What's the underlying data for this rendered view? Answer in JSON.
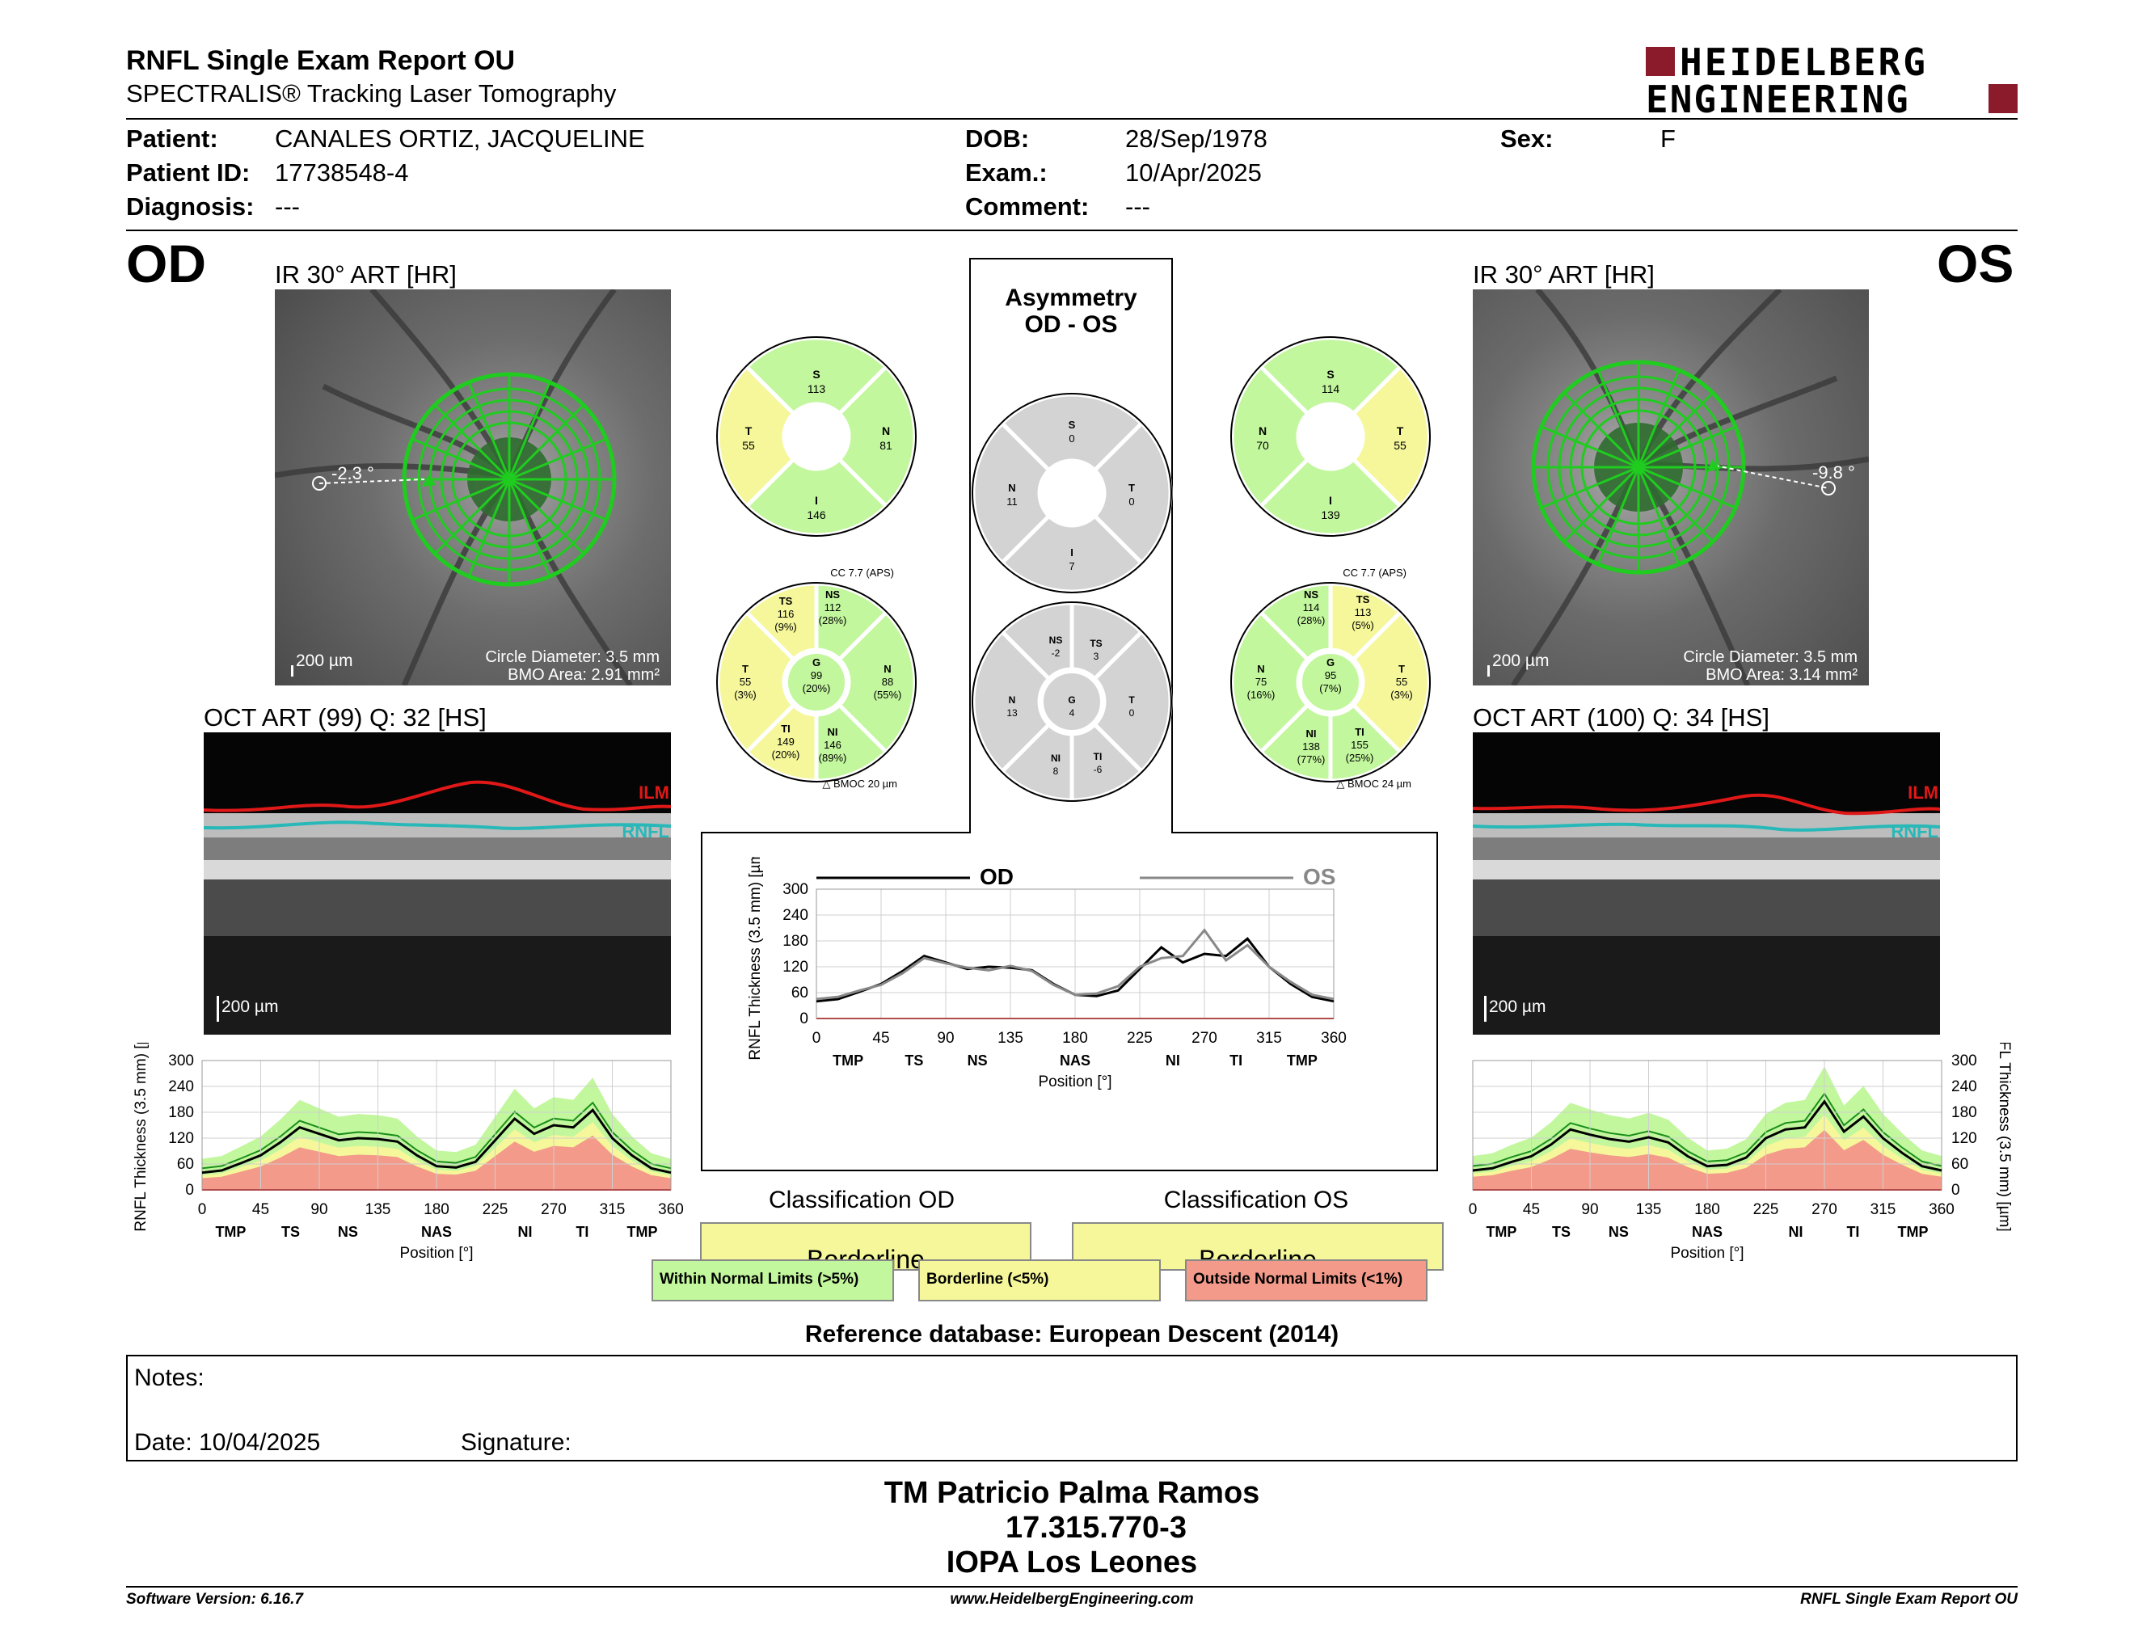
{
  "header": {
    "title": "RNFL Single Exam Report OU",
    "subtitle": "SPECTRALIS® Tracking Laser Tomography",
    "logo_line1": "HEIDELBERG",
    "logo_line2": "ENGINEERING"
  },
  "patient": {
    "patient_label": "Patient:",
    "patient_value": "CANALES ORTIZ, JACQUELINE",
    "id_label": "Patient ID:",
    "id_value": "17738548-4",
    "diagnosis_label": "Diagnosis:",
    "diagnosis_value": "---",
    "dob_label": "DOB:",
    "dob_value": "28/Sep/1978",
    "exam_label": "Exam.:",
    "exam_value": "10/Apr/2025",
    "comment_label": "Comment:",
    "comment_value": "---",
    "sex_label": "Sex:",
    "sex_value": "F"
  },
  "od": {
    "eye": "OD",
    "ir_title": "IR 30° ART [HR]",
    "angle": "-2.3 °",
    "scale": "200 µm",
    "circle_diameter": "Circle Diameter: 3.5 mm",
    "bmo_area": "BMO Area: 2.91 mm²",
    "oct_title": "OCT ART (99) Q: 32 [HS]",
    "oct_scale": "200 µm",
    "ilm": "ILM",
    "rnfl": "RNFL",
    "quad": {
      "S": "113",
      "T": "55",
      "N": "81",
      "I": "146"
    },
    "cc": "CC 7.7 (APS)",
    "bmoc": "BMOC 20 µm",
    "sectors": {
      "TS": {
        "v": "116",
        "p": "(9%)"
      },
      "NS": {
        "v": "112",
        "p": "(28%)"
      },
      "T": {
        "v": "55",
        "p": "(3%)"
      },
      "G": {
        "v": "99",
        "p": "(20%)"
      },
      "N": {
        "v": "88",
        "p": "(55%)"
      },
      "TI": {
        "v": "149",
        "p": "(20%)"
      },
      "NI": {
        "v": "146",
        "p": "(89%)"
      }
    },
    "classification_title": "Classification OD",
    "classification": "Borderline"
  },
  "os": {
    "eye": "OS",
    "ir_title": "IR 30° ART [HR]",
    "angle": "-9.8 °",
    "scale": "200 µm",
    "circle_diameter": "Circle Diameter: 3.5 mm",
    "bmo_area": "BMO Area: 3.14 mm²",
    "oct_title": "OCT ART (100) Q: 34 [HS]",
    "oct_scale": "200 µm",
    "ilm": "ILM",
    "rnfl": "RNFL",
    "quad": {
      "S": "114",
      "N": "70",
      "T": "55",
      "I": "139"
    },
    "cc": "CC 7.7 (APS)",
    "bmoc": "BMOC 24 µm",
    "sectors": {
      "NS": {
        "v": "114",
        "p": "(28%)"
      },
      "TS": {
        "v": "113",
        "p": "(5%)"
      },
      "N": {
        "v": "75",
        "p": "(16%)"
      },
      "G": {
        "v": "95",
        "p": "(7%)"
      },
      "T": {
        "v": "55",
        "p": "(3%)"
      },
      "NI": {
        "v": "138",
        "p": "(77%)"
      },
      "TI": {
        "v": "155",
        "p": "(25%)"
      }
    },
    "classification_title": "Classification OS",
    "classification": "Borderline"
  },
  "asymmetry": {
    "title_line1": "Asymmetry",
    "title_line2": "OD - OS",
    "quad": {
      "S": "0",
      "N": "11",
      "T": "0",
      "I": "7"
    },
    "sectors": {
      "NS": "-2",
      "TS": "3",
      "N": "13",
      "G": "4",
      "T": "0",
      "NI": "8",
      "TI": "-6"
    }
  },
  "chart_labels": {
    "od_legend": "OD",
    "os_legend": "OS",
    "ylabel": "RNFL Thickness (3.5 mm) [µm]",
    "xlabel": "Position [°]",
    "sector_ticks": [
      "TMP",
      "TS",
      "NS",
      "NAS",
      "NI",
      "TI",
      "TMP"
    ]
  },
  "chart_data": [
    {
      "type": "line",
      "title": "",
      "xlabel": "Position [°]",
      "ylabel": "RNFL Thickness (3.5 mm) [µm]",
      "xlim": [
        0,
        360
      ],
      "ylim": [
        0,
        300
      ],
      "x_ticks": [
        0,
        45,
        90,
        135,
        180,
        225,
        270,
        315,
        360
      ],
      "y_ticks": [
        0,
        60,
        120,
        180,
        240,
        300
      ],
      "x": [
        0,
        15,
        30,
        45,
        60,
        75,
        90,
        105,
        120,
        135,
        150,
        165,
        180,
        195,
        210,
        225,
        240,
        255,
        270,
        285,
        300,
        315,
        330,
        345,
        360
      ],
      "series": [
        {
          "name": "OD",
          "values": [
            40,
            45,
            62,
            80,
            110,
            145,
            130,
            115,
            120,
            118,
            112,
            80,
            55,
            52,
            65,
            115,
            165,
            130,
            150,
            145,
            185,
            120,
            80,
            50,
            40
          ]
        },
        {
          "name": "OS",
          "values": [
            45,
            50,
            65,
            78,
            105,
            140,
            128,
            118,
            112,
            122,
            110,
            78,
            55,
            58,
            75,
            120,
            140,
            145,
            205,
            135,
            170,
            120,
            85,
            55,
            45
          ]
        }
      ]
    },
    {
      "type": "area",
      "title": "",
      "xlabel": "Position [°]",
      "ylabel": "RNFL Thickness (3.5 mm) [µm]",
      "xlim": [
        0,
        360
      ],
      "ylim": [
        0,
        300
      ],
      "x_ticks": [
        0,
        45,
        90,
        135,
        180,
        225,
        270,
        315,
        360
      ],
      "y_ticks": [
        0,
        60,
        120,
        180,
        240,
        300
      ],
      "x": [
        0,
        15,
        30,
        45,
        60,
        75,
        90,
        105,
        120,
        135,
        150,
        165,
        180,
        195,
        210,
        225,
        240,
        255,
        270,
        285,
        300,
        315,
        330,
        345,
        360
      ],
      "series": [
        {
          "name": "OD",
          "values": [
            40,
            45,
            62,
            80,
            110,
            145,
            130,
            115,
            120,
            118,
            112,
            80,
            55,
            52,
            65,
            115,
            165,
            130,
            150,
            145,
            185,
            120,
            80,
            50,
            40
          ]
        }
      ]
    },
    {
      "type": "area",
      "title": "",
      "xlabel": "Position [°]",
      "ylabel": "RNFL Thickness (3.5 mm) [µm]",
      "xlim": [
        0,
        360
      ],
      "ylim": [
        0,
        300
      ],
      "x_ticks": [
        0,
        45,
        90,
        135,
        180,
        225,
        270,
        315,
        360
      ],
      "y_ticks": [
        0,
        60,
        120,
        180,
        240,
        300
      ],
      "x": [
        0,
        15,
        30,
        45,
        60,
        75,
        90,
        105,
        120,
        135,
        150,
        165,
        180,
        195,
        210,
        225,
        240,
        255,
        270,
        285,
        300,
        315,
        330,
        345,
        360
      ],
      "series": [
        {
          "name": "OS",
          "values": [
            45,
            50,
            65,
            78,
            105,
            140,
            128,
            118,
            112,
            122,
            110,
            78,
            55,
            58,
            75,
            120,
            140,
            145,
            205,
            135,
            170,
            120,
            85,
            55,
            45
          ]
        }
      ]
    }
  ],
  "legend": {
    "green_label": "Within Normal Limits (>5%)",
    "yellow_label": "Borderline (<5%)",
    "red_label": "Outside Normal Limits (<1%)",
    "green": "#c2f79d",
    "yellow": "#f5f79a",
    "red": "#f39a8a",
    "gray": "#d3d3d3"
  },
  "reference": "Reference database: European Descent (2014)",
  "notes": {
    "notes_label": "Notes:",
    "date_label": "Date: 10/04/2025",
    "signature_label": "Signature:"
  },
  "signature_block": {
    "line1": "TM Patricio Palma Ramos",
    "line2": "17.315.770-3",
    "line3": "IOPA Los Leones"
  },
  "footer": {
    "version": "Software Version: 6.16.7",
    "url": "www.HeidelbergEngineering.com",
    "report": "RNFL Single Exam Report OU"
  }
}
